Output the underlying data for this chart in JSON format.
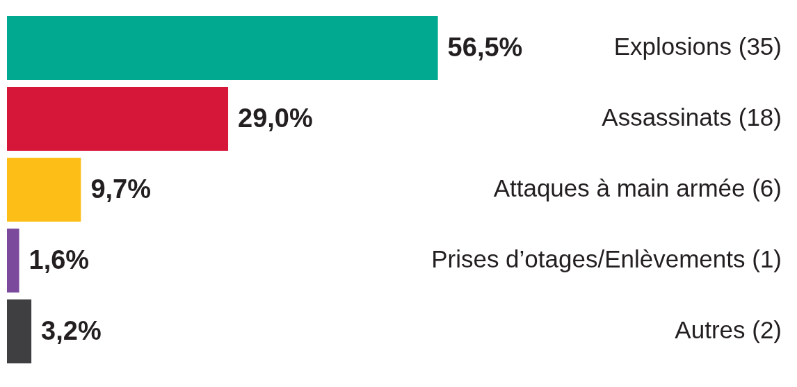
{
  "chart_data": {
    "type": "bar",
    "orientation": "horizontal",
    "categories": [
      "Explosions (35)",
      "Assassinats (18)",
      "Attaques à main armée (6)",
      "Prises d’otages/Enlèvements (1)",
      "Autres (2)"
    ],
    "values": [
      56.5,
      29.0,
      9.7,
      1.6,
      3.2
    ],
    "value_labels": [
      "56,5%",
      "29,0%",
      "9,7%",
      "1,6%",
      "3,2%"
    ],
    "colors": [
      "#00a990",
      "#d7173a",
      "#fdbe17",
      "#7b4a9d",
      "#3f3f41"
    ],
    "legend": false
  }
}
